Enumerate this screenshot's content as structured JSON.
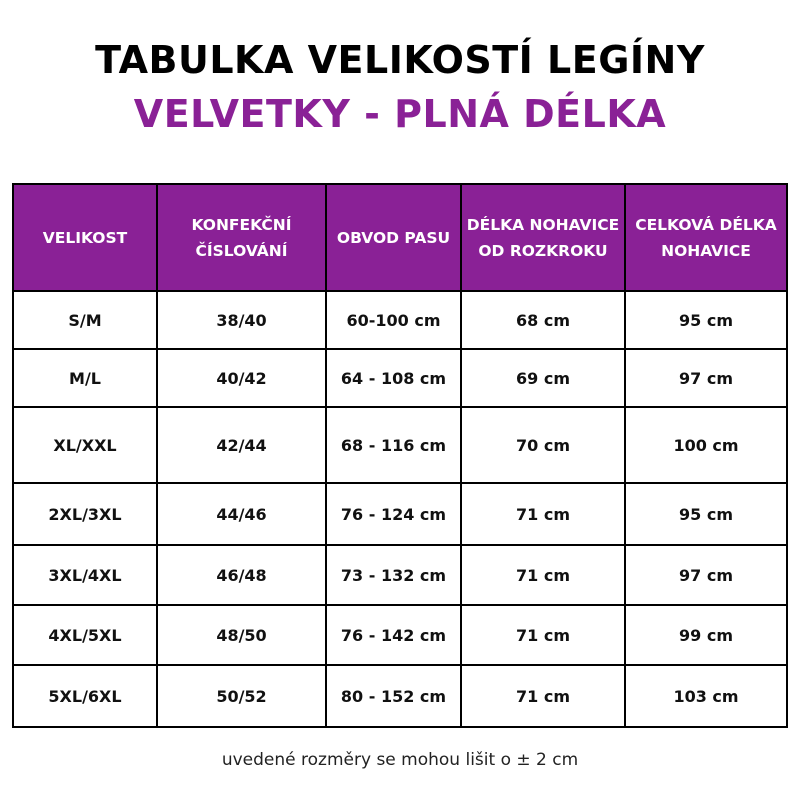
{
  "title": "TABULKA VELIKOSTÍ LEGÍNY",
  "subtitle": "VELVETKY - PLNÁ DÉLKA",
  "accent_color": "#8a2196",
  "table": {
    "headers": [
      "VELIKOST",
      "KONFEKČNÍ ČÍSLOVÁNÍ",
      "OBVOD PASU",
      "DÉLKA NOHAVICE OD ROZKROKU",
      "CELKOVÁ DÉLKA NOHAVICE"
    ],
    "rows": [
      [
        "S/M",
        "38/40",
        "60-100 cm",
        "68 cm",
        "95 cm"
      ],
      [
        "M/L",
        "40/42",
        "64 - 108 cm",
        "69 cm",
        "97 cm"
      ],
      [
        "XL/XXL",
        "42/44",
        "68 - 116 cm",
        "70 cm",
        "100 cm"
      ],
      [
        "2XL/3XL",
        "44/46",
        "76 - 124 cm",
        "71 cm",
        "95 cm"
      ],
      [
        "3XL/4XL",
        "46/48",
        "73 - 132 cm",
        "71 cm",
        "97 cm"
      ],
      [
        "4XL/5XL",
        "48/50",
        "76 - 142 cm",
        "71 cm",
        "99 cm"
      ],
      [
        "5XL/6XL",
        "50/52",
        "80 - 152 cm",
        "71 cm",
        "103 cm"
      ]
    ]
  },
  "footnote": "uvedené rozměry se mohou lišit o ± 2 cm"
}
